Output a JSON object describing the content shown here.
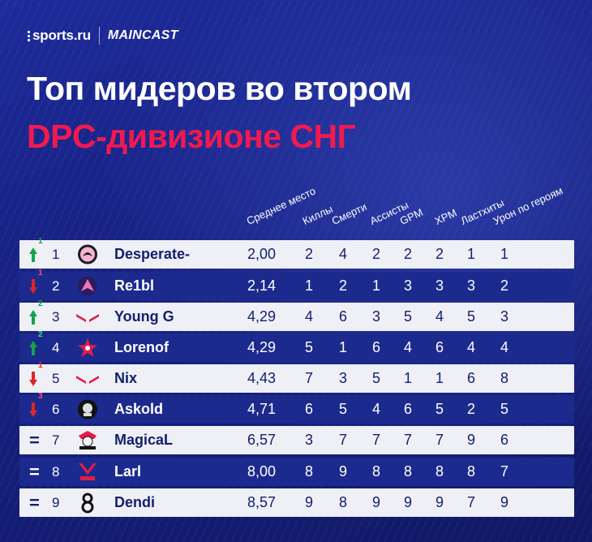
{
  "logos": {
    "left": "sports.ru",
    "right": "MAINCAST"
  },
  "title": {
    "line1": "Топ мидеров во втором",
    "line2": "DPC-дивизионе СНГ"
  },
  "colors": {
    "accent": "#f01a4e",
    "up": "#16a34a",
    "down": "#dc2626",
    "row_light": "#eef0f6",
    "row_dark": "#1c2a8e",
    "background": "#16207f"
  },
  "columns": [
    "Среднее место",
    "Киллы",
    "Смерти",
    "Ассисты",
    "GPM",
    "XPM",
    "Ластхиты",
    "Урон по героям"
  ],
  "rows": [
    {
      "trend": "up",
      "change": "1",
      "rank": "1",
      "team_icon": "desperate-logo",
      "player": "Desperate-",
      "avg": "2,00",
      "stats": [
        "2",
        "4",
        "2",
        "2",
        "2",
        "1",
        "1"
      ]
    },
    {
      "trend": "down",
      "change": "1",
      "rank": "2",
      "team_icon": "re1bl-team-logo",
      "player": "Re1bl",
      "avg": "2,14",
      "stats": [
        "1",
        "2",
        "1",
        "3",
        "3",
        "3",
        "2"
      ]
    },
    {
      "trend": "up",
      "change": "2",
      "rank": "3",
      "team_icon": "red-wings-logo",
      "player": "Young G",
      "avg": "4,29",
      "stats": [
        "4",
        "6",
        "3",
        "5",
        "4",
        "5",
        "3"
      ]
    },
    {
      "trend": "up",
      "change": "2",
      "rank": "4",
      "team_icon": "gambit-star-logo",
      "player": "Lorenof",
      "avg": "4,29",
      "stats": [
        "5",
        "1",
        "6",
        "4",
        "6",
        "4",
        "4"
      ]
    },
    {
      "trend": "down",
      "change": "1",
      "rank": "5",
      "team_icon": "red-wings-logo",
      "player": "Nix",
      "avg": "4,43",
      "stats": [
        "7",
        "3",
        "5",
        "1",
        "1",
        "6",
        "8"
      ]
    },
    {
      "trend": "down",
      "change": "3",
      "rank": "6",
      "team_icon": "askold-team-logo",
      "player": "Askold",
      "avg": "4,71",
      "stats": [
        "6",
        "5",
        "4",
        "6",
        "5",
        "2",
        "5"
      ]
    },
    {
      "trend": "same",
      "change": "",
      "rank": "7",
      "team_icon": "astralis-like-pirate-logo",
      "player": "MagicaL",
      "avg": "6,57",
      "stats": [
        "3",
        "7",
        "7",
        "7",
        "7",
        "9",
        "6"
      ]
    },
    {
      "trend": "same",
      "change": "",
      "rank": "8",
      "team_icon": "virtus-pro-logo",
      "player": "Larl",
      "avg": "8,00",
      "stats": [
        "8",
        "9",
        "8",
        "8",
        "8",
        "8",
        "7"
      ]
    },
    {
      "trend": "same",
      "change": "",
      "rank": "9",
      "team_icon": "b8-logo",
      "player": "Dendi",
      "avg": "8,57",
      "stats": [
        "9",
        "8",
        "9",
        "9",
        "9",
        "7",
        "9"
      ]
    }
  ]
}
